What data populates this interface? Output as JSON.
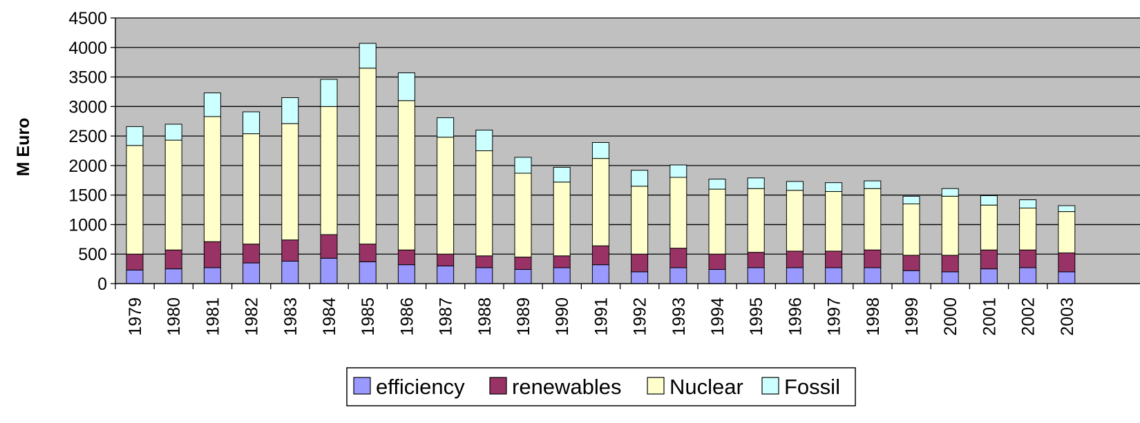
{
  "chart_data": {
    "type": "bar",
    "stacked": true,
    "ylabel": "M Euro",
    "ylim": [
      0,
      4500
    ],
    "yticks": [
      0,
      500,
      1000,
      1500,
      2000,
      2500,
      3000,
      3500,
      4000,
      4500
    ],
    "grid": true,
    "legend_position": "bottom",
    "categories": [
      "1979",
      "1980",
      "1981",
      "1982",
      "1983",
      "1984",
      "1985",
      "1986",
      "1987",
      "1988",
      "1989",
      "1990",
      "1991",
      "1992",
      "1993",
      "1994",
      "1995",
      "1996",
      "1997",
      "1998",
      "1999",
      "2000",
      "2001",
      "2002",
      "2003"
    ],
    "series": [
      {
        "name": "efficiency",
        "color": "#9999ff",
        "values": [
          230,
          250,
          270,
          350,
          380,
          430,
          370,
          320,
          300,
          270,
          240,
          270,
          320,
          200,
          270,
          240,
          270,
          270,
          270,
          270,
          220,
          200,
          250,
          270,
          200
        ]
      },
      {
        "name": "renewables",
        "color": "#993366",
        "values": [
          270,
          320,
          440,
          320,
          360,
          400,
          300,
          250,
          200,
          200,
          210,
          200,
          320,
          300,
          330,
          260,
          260,
          280,
          280,
          300,
          260,
          280,
          320,
          300,
          320
        ]
      },
      {
        "name": "Nuclear",
        "color": "#ffffcc",
        "values": [
          1840,
          1860,
          2120,
          1870,
          1970,
          2170,
          2980,
          2530,
          1980,
          1780,
          1420,
          1250,
          1480,
          1150,
          1200,
          1100,
          1080,
          1030,
          1010,
          1040,
          870,
          1000,
          760,
          710,
          700
        ]
      },
      {
        "name": "Fossil",
        "color": "#ccffff",
        "values": [
          320,
          270,
          400,
          370,
          440,
          460,
          420,
          470,
          330,
          350,
          270,
          250,
          270,
          270,
          210,
          170,
          180,
          150,
          150,
          130,
          130,
          130,
          160,
          140,
          100
        ]
      }
    ]
  }
}
